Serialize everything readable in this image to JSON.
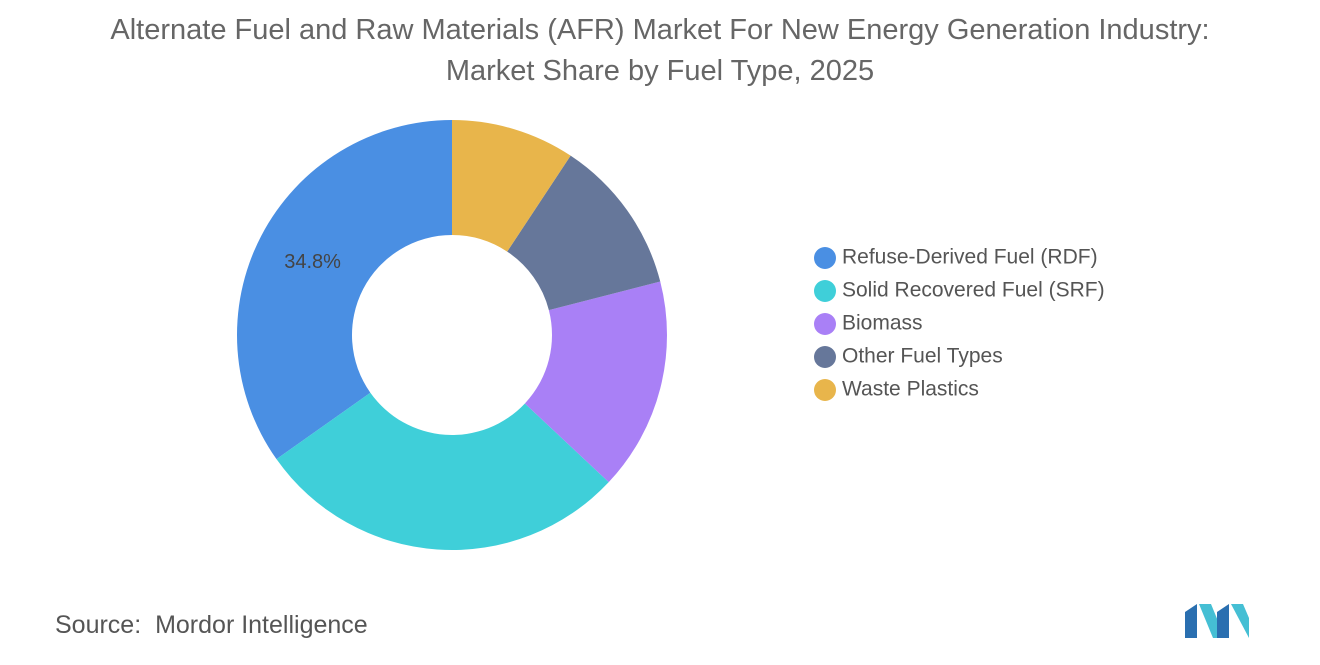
{
  "chart_data": {
    "type": "pie",
    "title": "Alternate Fuel and Raw Materials (AFR) Market For New Energy Generation Industry: Market Share by Fuel Type, 2025",
    "categories": [
      "Refuse-Derived Fuel (RDF)",
      "Solid Recovered Fuel (SRF)",
      "Biomass",
      "Other Fuel Types",
      "Waste Plastics"
    ],
    "values": [
      34.8,
      28.2,
      16.0,
      11.7,
      9.3
    ],
    "value_labels": [
      "34.8%",
      null,
      null,
      null,
      null
    ],
    "colors": [
      "#4a8fe3",
      "#3fcfd9",
      "#a980f6",
      "#66779a",
      "#e8b54b"
    ],
    "legend": "right"
  },
  "source": {
    "label": "Source:",
    "text": "Mordor Intelligence"
  }
}
